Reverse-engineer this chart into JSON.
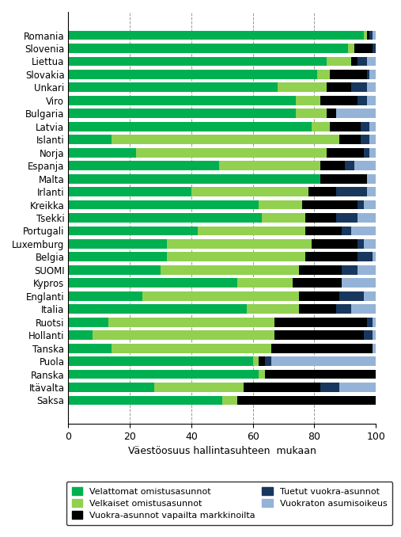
{
  "countries": [
    "Saksa",
    "Itävalta",
    "Ranska",
    "Puola",
    "Tanska",
    "Hollanti",
    "Ruotsi",
    "Italia",
    "Englanti",
    "Kypros",
    "SUOMI",
    "Belgia",
    "Luxemburg",
    "Portugali",
    "Tsekki",
    "Kreikka",
    "Irlanti",
    "Malta",
    "Espanja",
    "Norja",
    "Islanti",
    "Latvia",
    "Bulgaria",
    "Viro",
    "Unkari",
    "Slovakia",
    "Liettua",
    "Slovenia",
    "Romania"
  ],
  "velattomat": [
    50,
    28,
    62,
    60,
    14,
    8,
    13,
    58,
    24,
    55,
    30,
    32,
    32,
    42,
    63,
    62,
    40,
    82,
    49,
    22,
    14,
    79,
    74,
    74,
    68,
    81,
    84,
    91,
    96
  ],
  "velkaiset": [
    5,
    29,
    2,
    2,
    52,
    59,
    54,
    17,
    51,
    18,
    45,
    45,
    47,
    35,
    14,
    14,
    38,
    0,
    33,
    62,
    74,
    6,
    10,
    8,
    16,
    4,
    8,
    2,
    1
  ],
  "vuokra_vapaat": [
    45,
    25,
    36,
    2,
    33,
    29,
    30,
    12,
    13,
    16,
    14,
    17,
    15,
    12,
    10,
    18,
    9,
    15,
    8,
    12,
    7,
    10,
    3,
    12,
    8,
    12,
    2,
    6,
    1
  ],
  "tuetut": [
    0,
    6,
    0,
    2,
    0,
    3,
    2,
    5,
    8,
    0,
    5,
    5,
    2,
    3,
    7,
    2,
    10,
    0,
    3,
    2,
    3,
    3,
    0,
    3,
    5,
    1,
    3,
    1,
    1
  ],
  "vuokraton": [
    0,
    12,
    0,
    34,
    1,
    1,
    1,
    8,
    4,
    11,
    6,
    1,
    4,
    8,
    6,
    4,
    3,
    3,
    7,
    2,
    2,
    2,
    13,
    3,
    3,
    2,
    3,
    0,
    1
  ],
  "colors": {
    "velattomat": "#00b050",
    "velkaiset": "#92d050",
    "vuokra_vapaat": "#000000",
    "tuetut": "#17375e",
    "vuokraton": "#95b3d7"
  },
  "xlabel": "Väestöosuus hallintasuhteen  mukaan",
  "legend_labels": [
    "Velattomat omistusasunnot",
    "Velkaiset omistusasunnot",
    "Vuokra-asunnot vapailta markkinoilta",
    "Tuetut vuokra-asunnot",
    "Vuokraton asumisoikeus"
  ],
  "xlim": [
    0,
    100
  ],
  "xticks": [
    0,
    20,
    40,
    60,
    80,
    100
  ]
}
